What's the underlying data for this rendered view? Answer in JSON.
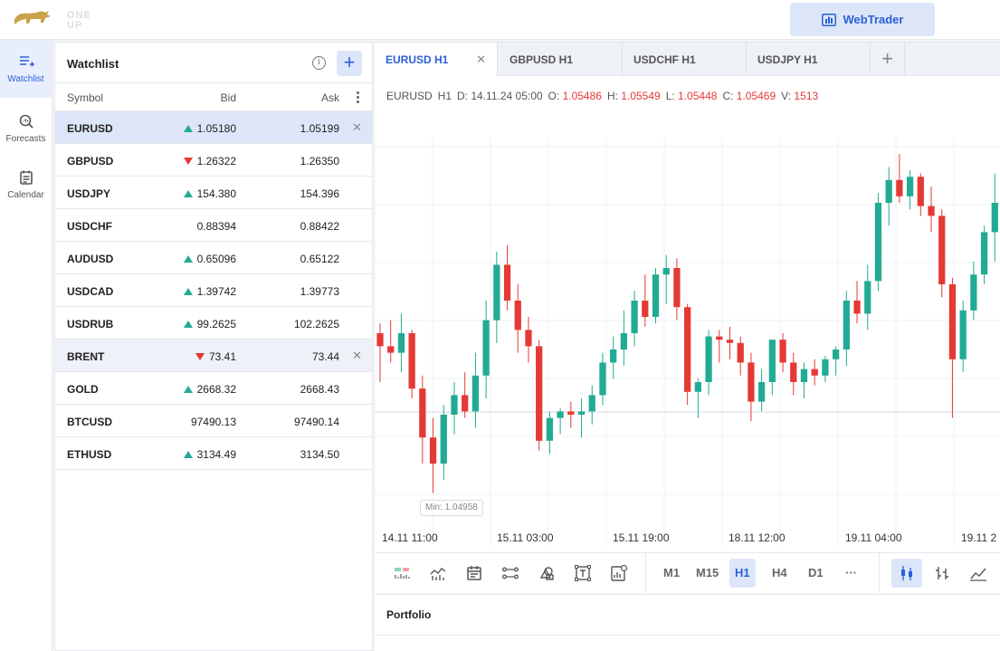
{
  "header": {
    "logo_text": "ONE UP",
    "webtrader_label": "WebTrader"
  },
  "nav": {
    "items": [
      {
        "label": "Watchlist",
        "icon": "watchlist-icon",
        "active": true
      },
      {
        "label": "Forecasts",
        "icon": "forecast-search-icon",
        "active": false
      },
      {
        "label": "Calendar",
        "icon": "calendar-icon",
        "active": false
      }
    ]
  },
  "watchlist": {
    "title": "Watchlist",
    "columns": {
      "symbol": "Symbol",
      "bid": "Bid",
      "ask": "Ask"
    },
    "rows": [
      {
        "symbol": "EURUSD",
        "dir": "up",
        "bid": "1.05180",
        "ask": "1.05199",
        "selected": 1
      },
      {
        "symbol": "GBPUSD",
        "dir": "down",
        "bid": "1.26322",
        "ask": "1.26350",
        "selected": 0
      },
      {
        "symbol": "USDJPY",
        "dir": "up",
        "bid": "154.380",
        "ask": "154.396",
        "selected": 0
      },
      {
        "symbol": "USDCHF",
        "dir": "none",
        "bid": "0.88394",
        "ask": "0.88422",
        "selected": 0
      },
      {
        "symbol": "AUDUSD",
        "dir": "up",
        "bid": "0.65096",
        "ask": "0.65122",
        "selected": 0
      },
      {
        "symbol": "USDCAD",
        "dir": "up",
        "bid": "1.39742",
        "ask": "1.39773",
        "selected": 0
      },
      {
        "symbol": "USDRUB",
        "dir": "up",
        "bid": "99.2625",
        "ask": "102.2625",
        "selected": 0
      },
      {
        "symbol": "BRENT",
        "dir": "down",
        "bid": "73.41",
        "ask": "73.44",
        "selected": 2
      },
      {
        "symbol": "GOLD",
        "dir": "up",
        "bid": "2668.32",
        "ask": "2668.43",
        "selected": 0
      },
      {
        "symbol": "BTCUSD",
        "dir": "none",
        "bid": "97490.13",
        "ask": "97490.14",
        "selected": 0
      },
      {
        "symbol": "ETHUSD",
        "dir": "up",
        "bid": "3134.49",
        "ask": "3134.50",
        "selected": 0
      }
    ]
  },
  "tabs": [
    {
      "label": "EURUSD H1",
      "active": true
    },
    {
      "label": "GBPUSD H1",
      "active": false
    },
    {
      "label": "USDCHF H1",
      "active": false
    },
    {
      "label": "USDJPY H1",
      "active": false
    }
  ],
  "ohlc": {
    "symbol": "EURUSD",
    "timeframe": "H1",
    "date_label": "D:",
    "date": "14.11.24 05:00",
    "open_label": "O:",
    "open": "1.05486",
    "high_label": "H:",
    "high": "1.05549",
    "low_label": "L:",
    "low": "1.05448",
    "close_label": "C:",
    "close": "1.05469",
    "volume_label": "V:",
    "volume": "1513"
  },
  "chart": {
    "min_label": "Min: 1.04958",
    "x_ticks": [
      "14.11 11:00",
      "15.11 03:00",
      "15.11 19:00",
      "18.11 12:00",
      "19.11 04:00",
      "19.11 2"
    ],
    "up_color": "#22ab94",
    "down_color": "#e53935"
  },
  "chart_data": {
    "type": "candlestick",
    "symbol": "EURUSD",
    "timeframe": "H1",
    "x_tick_labels": [
      "14.11 11:00",
      "15.11 03:00",
      "15.11 19:00",
      "18.11 12:00",
      "19.11 04:00",
      "19.11 2"
    ],
    "min": 1.04958,
    "ylim": [
      1.048,
      1.0605
    ],
    "candles": [
      [
        1.0545,
        1.0548,
        1.053,
        1.0541
      ],
      [
        1.0541,
        1.0549,
        1.0536,
        1.0539
      ],
      [
        1.0539,
        1.0551,
        1.0533,
        1.0545
      ],
      [
        1.0545,
        1.0546,
        1.0525,
        1.0528
      ],
      [
        1.0528,
        1.0532,
        1.0505,
        1.0513
      ],
      [
        1.0513,
        1.0519,
        1.0496,
        1.0505
      ],
      [
        1.0505,
        1.0523,
        1.05,
        1.052
      ],
      [
        1.052,
        1.053,
        1.0514,
        1.0526
      ],
      [
        1.0526,
        1.0533,
        1.0519,
        1.0521
      ],
      [
        1.0521,
        1.0539,
        1.0516,
        1.0532
      ],
      [
        1.0532,
        1.0555,
        1.0525,
        1.0549
      ],
      [
        1.0549,
        1.057,
        1.0542,
        1.0566
      ],
      [
        1.0566,
        1.0572,
        1.0552,
        1.0555
      ],
      [
        1.0555,
        1.056,
        1.0539,
        1.0546
      ],
      [
        1.0546,
        1.055,
        1.0536,
        1.0541
      ],
      [
        1.0541,
        1.0543,
        1.0509,
        1.0512
      ],
      [
        1.0512,
        1.0521,
        1.0508,
        1.0519
      ],
      [
        1.0519,
        1.0522,
        1.0514,
        1.0521
      ],
      [
        1.0521,
        1.0524,
        1.0516,
        1.052
      ],
      [
        1.052,
        1.0525,
        1.0513,
        1.0521
      ],
      [
        1.0521,
        1.0529,
        1.0517,
        1.0526
      ],
      [
        1.0526,
        1.0539,
        1.0523,
        1.0536
      ],
      [
        1.0536,
        1.0544,
        1.0531,
        1.054
      ],
      [
        1.054,
        1.0552,
        1.0535,
        1.0545
      ],
      [
        1.0545,
        1.0558,
        1.0541,
        1.0555
      ],
      [
        1.0555,
        1.0563,
        1.0547,
        1.055
      ],
      [
        1.055,
        1.0565,
        1.0548,
        1.0563
      ],
      [
        1.0563,
        1.0569,
        1.0554,
        1.0565
      ],
      [
        1.0565,
        1.0568,
        1.0549,
        1.0553
      ],
      [
        1.0553,
        1.0554,
        1.0523,
        1.0527
      ],
      [
        1.0527,
        1.0531,
        1.0519,
        1.053
      ],
      [
        1.053,
        1.0546,
        1.0526,
        1.0544
      ],
      [
        1.0544,
        1.0546,
        1.0536,
        1.0543
      ],
      [
        1.0543,
        1.0547,
        1.0537,
        1.0542
      ],
      [
        1.0542,
        1.0544,
        1.0532,
        1.0536
      ],
      [
        1.0536,
        1.0539,
        1.0518,
        1.0524
      ],
      [
        1.0524,
        1.0534,
        1.0521,
        1.053
      ],
      [
        1.053,
        1.0542,
        1.0526,
        1.0543
      ],
      [
        1.0543,
        1.0545,
        1.0533,
        1.0536
      ],
      [
        1.0536,
        1.0539,
        1.0526,
        1.053
      ],
      [
        1.053,
        1.0536,
        1.0525,
        1.0534
      ],
      [
        1.0534,
        1.0537,
        1.0529,
        1.0532
      ],
      [
        1.0532,
        1.0538,
        1.053,
        1.0537
      ],
      [
        1.0537,
        1.0541,
        1.0532,
        1.054
      ],
      [
        1.054,
        1.0558,
        1.0535,
        1.0555
      ],
      [
        1.0555,
        1.0561,
        1.0548,
        1.0551
      ],
      [
        1.0551,
        1.0566,
        1.0546,
        1.0561
      ],
      [
        1.0561,
        1.0588,
        1.0558,
        1.0585
      ],
      [
        1.0585,
        1.0596,
        1.0578,
        1.0592
      ],
      [
        1.0592,
        1.06,
        1.0585,
        1.0587
      ],
      [
        1.0587,
        1.0595,
        1.0583,
        1.0593
      ],
      [
        1.0593,
        1.0594,
        1.0581,
        1.0584
      ],
      [
        1.0584,
        1.059,
        1.0576,
        1.0581
      ],
      [
        1.0581,
        1.0583,
        1.0556,
        1.056
      ],
      [
        1.056,
        1.0562,
        1.0519,
        1.0537
      ],
      [
        1.0537,
        1.0555,
        1.0533,
        1.0552
      ],
      [
        1.0552,
        1.0567,
        1.0549,
        1.0563
      ],
      [
        1.0563,
        1.0578,
        1.056,
        1.0576
      ],
      [
        1.0576,
        1.0594,
        1.0567,
        1.0585
      ]
    ]
  }
}
